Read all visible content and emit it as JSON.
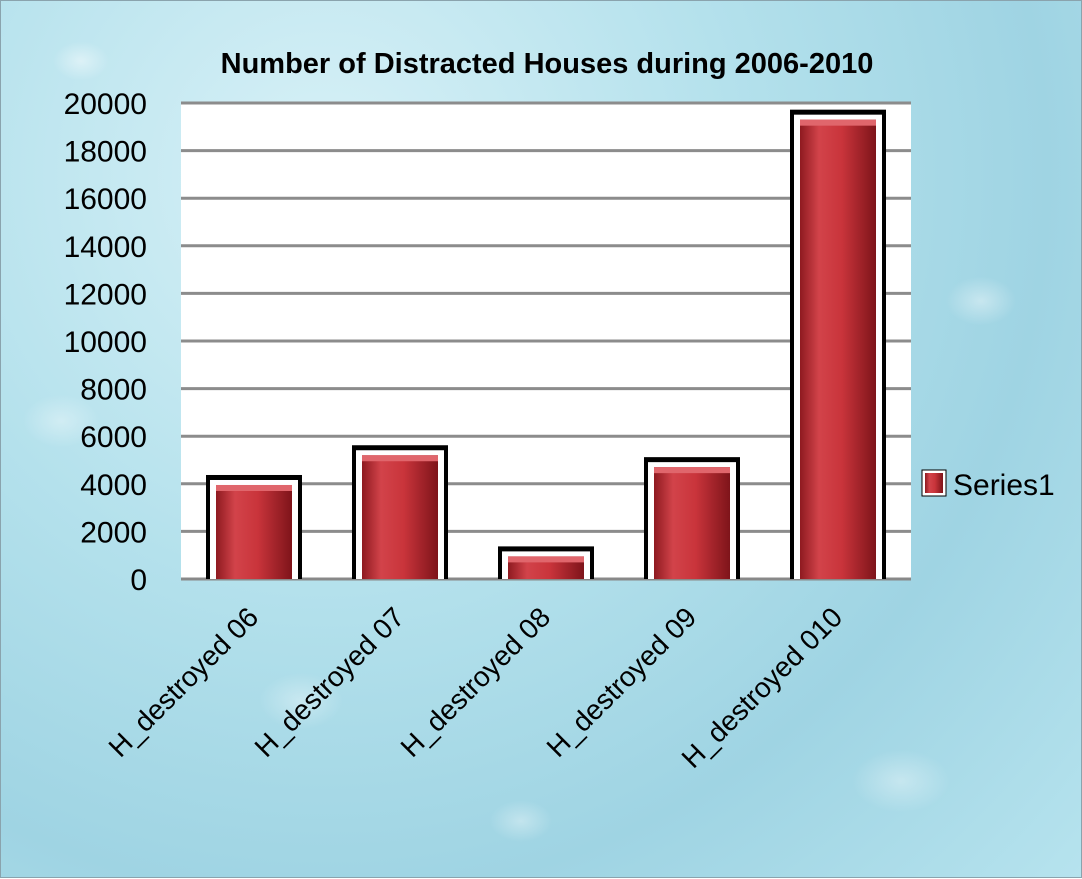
{
  "chart_data": {
    "type": "bar",
    "title": "Number of Distracted Houses during 2006-2010",
    "xlabel": "",
    "ylabel": "",
    "categories": [
      "H_destroyed 06",
      "H_destroyed 07",
      "H_destroyed 08",
      "H_destroyed 09",
      "H_destroyed 010"
    ],
    "series": [
      {
        "name": "Series1",
        "values": [
          3950,
          5200,
          950,
          4700,
          19300
        ]
      }
    ],
    "ylim": [
      0,
      20000
    ],
    "yticks": [
      "0",
      "2000",
      "4000",
      "6000",
      "8000",
      "10000",
      "12000",
      "14000",
      "16000",
      "18000",
      "20000"
    ],
    "grid": true,
    "legend_position": "right",
    "colors": {
      "bar": "#c62f36",
      "bar_frame": "#000000",
      "grid": "#8c8c8c",
      "plot_bg": "#ffffff"
    }
  }
}
